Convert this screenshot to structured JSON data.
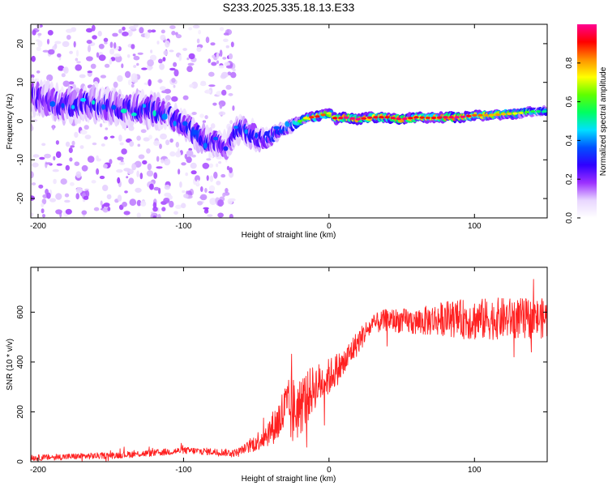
{
  "figure": {
    "title": "S233.2025.335.18.13.E33"
  },
  "chart_data": [
    {
      "type": "heatmap",
      "panel": "spectrogram",
      "xlabel": "Height of straight line (km)",
      "ylabel": "Frequency (Hz)",
      "xlim": [
        -205,
        150
      ],
      "ylim": [
        -25,
        25
      ],
      "xticks": [
        -200,
        -100,
        0,
        100
      ],
      "yticks": [
        -20,
        -10,
        0,
        10,
        20
      ],
      "colorbar": {
        "label": "Normalized spectral amplitude",
        "range": [
          0,
          1
        ],
        "ticks": [
          "0.0",
          "0.2",
          "0.4",
          "0.6",
          "0.8"
        ],
        "colors": [
          "#ffffff",
          "#e8d6ff",
          "#9b30ff",
          "#3000ff",
          "#0050ff",
          "#00e0ff",
          "#00ff60",
          "#60ff00",
          "#ffff00",
          "#ff9000",
          "#ff0000",
          "#ff0090"
        ]
      },
      "ridge": {
        "x": [
          -200,
          -180,
          -160,
          -140,
          -120,
          -110,
          -100,
          -95,
          -90,
          -85,
          -80,
          -75,
          -70,
          -65,
          -60,
          -55,
          -50,
          -45,
          -40,
          -35,
          -30,
          -25,
          -20,
          -15,
          -10,
          -5,
          0,
          5,
          10,
          20,
          30,
          40,
          50,
          60,
          70,
          80,
          90,
          100,
          110,
          120,
          130,
          140,
          150
        ],
        "frequency": [
          6,
          4,
          4.5,
          3,
          3,
          1.5,
          -1,
          -2,
          -4,
          -5,
          -6,
          -5,
          -7,
          -3,
          -2,
          -3,
          -4,
          -5,
          -4,
          -3,
          -2,
          -1,
          0,
          1,
          1,
          1.5,
          2,
          0.5,
          1,
          0.5,
          1,
          1,
          0.5,
          1,
          0.8,
          1,
          1,
          1.5,
          1.5,
          1.8,
          2,
          2.5,
          2.5
        ],
        "amplitude": [
          0.25,
          0.3,
          0.3,
          0.3,
          0.35,
          0.3,
          0.3,
          0.35,
          0.4,
          0.35,
          0.3,
          0.3,
          0.2,
          0.3,
          0.35,
          0.35,
          0.3,
          0.3,
          0.35,
          0.35,
          0.4,
          0.45,
          0.6,
          0.75,
          0.9,
          0.85,
          0.7,
          0.9,
          0.95,
          0.95,
          0.9,
          0.9,
          0.95,
          0.9,
          0.85,
          0.95,
          0.95,
          0.85,
          0.8,
          0.75,
          0.7,
          0.55,
          0.45
        ],
        "width": [
          5,
          5,
          5,
          5,
          5,
          4,
          4,
          4,
          4,
          4,
          4,
          4,
          4,
          4,
          4,
          4,
          4,
          3,
          3,
          2.5,
          2,
          2,
          1.5,
          1.5,
          1.5,
          1.5,
          1.5,
          1.5,
          1.5,
          1.5,
          1.5,
          1.5,
          1.5,
          1.5,
          1.5,
          1.5,
          1.5,
          1.5,
          1.5,
          1.5,
          1.5,
          1.5,
          1.5
        ]
      },
      "noise_region": {
        "x_range": [
          -205,
          -65
        ],
        "freq_range": [
          -25,
          25
        ],
        "density": 0.6
      }
    },
    {
      "type": "line",
      "panel": "snr",
      "xlabel": "Height of straight line (km)",
      "ylabel": "SNR (10 * v/v)",
      "color": "#ff2020",
      "xlim": [
        -205,
        150
      ],
      "ylim": [
        0,
        780
      ],
      "xticks": [
        -200,
        -100,
        0,
        100
      ],
      "yticks": [
        0,
        200,
        400,
        600
      ],
      "trend": {
        "x": [
          -205,
          -180,
          -150,
          -120,
          -100,
          -80,
          -65,
          -55,
          -45,
          -35,
          -30,
          -25,
          -20,
          -15,
          -10,
          -5,
          0,
          5,
          10,
          15,
          20,
          25,
          30,
          40,
          60,
          80,
          100,
          120,
          150
        ],
        "y": [
          15,
          20,
          25,
          35,
          45,
          40,
          35,
          60,
          100,
          160,
          210,
          200,
          220,
          260,
          300,
          320,
          340,
          370,
          390,
          440,
          480,
          520,
          550,
          570,
          560,
          575,
          570,
          575,
          575
        ]
      },
      "noise_amplitude": {
        "x": [
          -205,
          -60,
          -40,
          -25,
          -10,
          10,
          30,
          60,
          100,
          150
        ],
        "amp": [
          12,
          15,
          60,
          140,
          90,
          60,
          40,
          55,
          85,
          80
        ]
      }
    }
  ]
}
